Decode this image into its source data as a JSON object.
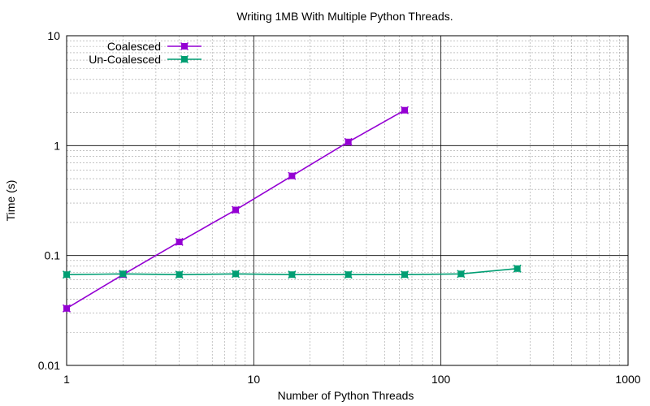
{
  "chart_data": {
    "type": "line",
    "title": "Writing 1MB With Multiple Python Threads.",
    "xlabel": "Number of Python Threads",
    "ylabel": "Time (s)",
    "x_scale": "log",
    "y_scale": "log",
    "xlim": [
      1,
      1000
    ],
    "ylim": [
      0.01,
      10
    ],
    "x_ticks": [
      1,
      10,
      100,
      1000
    ],
    "x_tick_labels": [
      "1",
      "10",
      "100",
      "1000"
    ],
    "y_ticks": [
      0.01,
      0.1,
      1,
      10
    ],
    "y_tick_labels": [
      "0.01",
      "0.1",
      "1",
      "10"
    ],
    "grid": true,
    "legend_position": "top-left",
    "series": [
      {
        "name": "Coalesced",
        "color": "#9400d3",
        "marker": "x-box",
        "x": [
          1,
          2,
          4,
          8,
          16,
          32,
          64
        ],
        "y": [
          0.033,
          0.067,
          0.133,
          0.26,
          0.53,
          1.08,
          2.1
        ]
      },
      {
        "name": "Un-Coalesced",
        "color": "#009e73",
        "marker": "x-box",
        "x": [
          1,
          2,
          4,
          8,
          16,
          32,
          64,
          128,
          256
        ],
        "y": [
          0.067,
          0.068,
          0.067,
          0.068,
          0.067,
          0.067,
          0.067,
          0.068,
          0.076
        ]
      }
    ]
  }
}
